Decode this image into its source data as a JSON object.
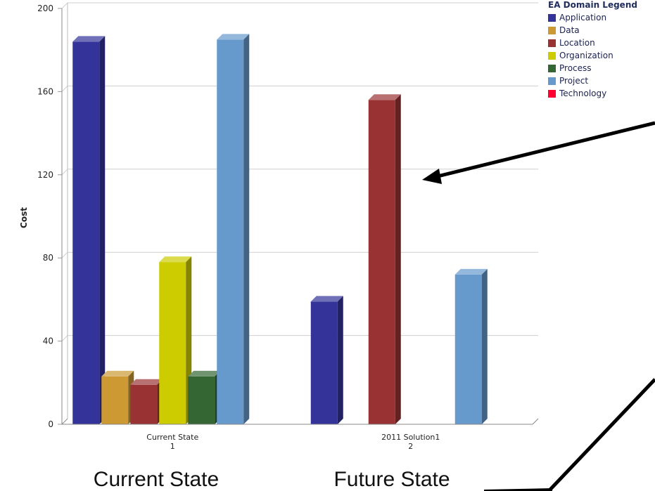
{
  "chart_data": {
    "type": "bar",
    "ylabel": "Cost",
    "ylim": [
      0,
      200
    ],
    "yticks": [
      0,
      40,
      80,
      120,
      160,
      200
    ],
    "categories": [
      {
        "label": "Current State",
        "index": "1"
      },
      {
        "label": "2011 Solution1",
        "index": "2"
      }
    ],
    "series": [
      {
        "name": "Application",
        "color": "#333399",
        "values": [
          184,
          59
        ]
      },
      {
        "name": "Data",
        "color": "#cc9933",
        "values": [
          23,
          0
        ]
      },
      {
        "name": "Location",
        "color": "#993333",
        "values": [
          19,
          156
        ]
      },
      {
        "name": "Organization",
        "color": "#cccc00",
        "values": [
          78,
          0
        ]
      },
      {
        "name": "Process",
        "color": "#336633",
        "values": [
          23,
          0
        ]
      },
      {
        "name": "Project",
        "color": "#6699cc",
        "values": [
          185,
          72
        ]
      },
      {
        "name": "Technology",
        "color": "#ff0033",
        "values": [
          0,
          0
        ]
      }
    ],
    "legend": {
      "title": "EA Domain Legend",
      "placement": "top-right"
    },
    "grid": true
  },
  "annotations": {
    "current_state_label": "Current State",
    "future_state_label": "Future State"
  }
}
